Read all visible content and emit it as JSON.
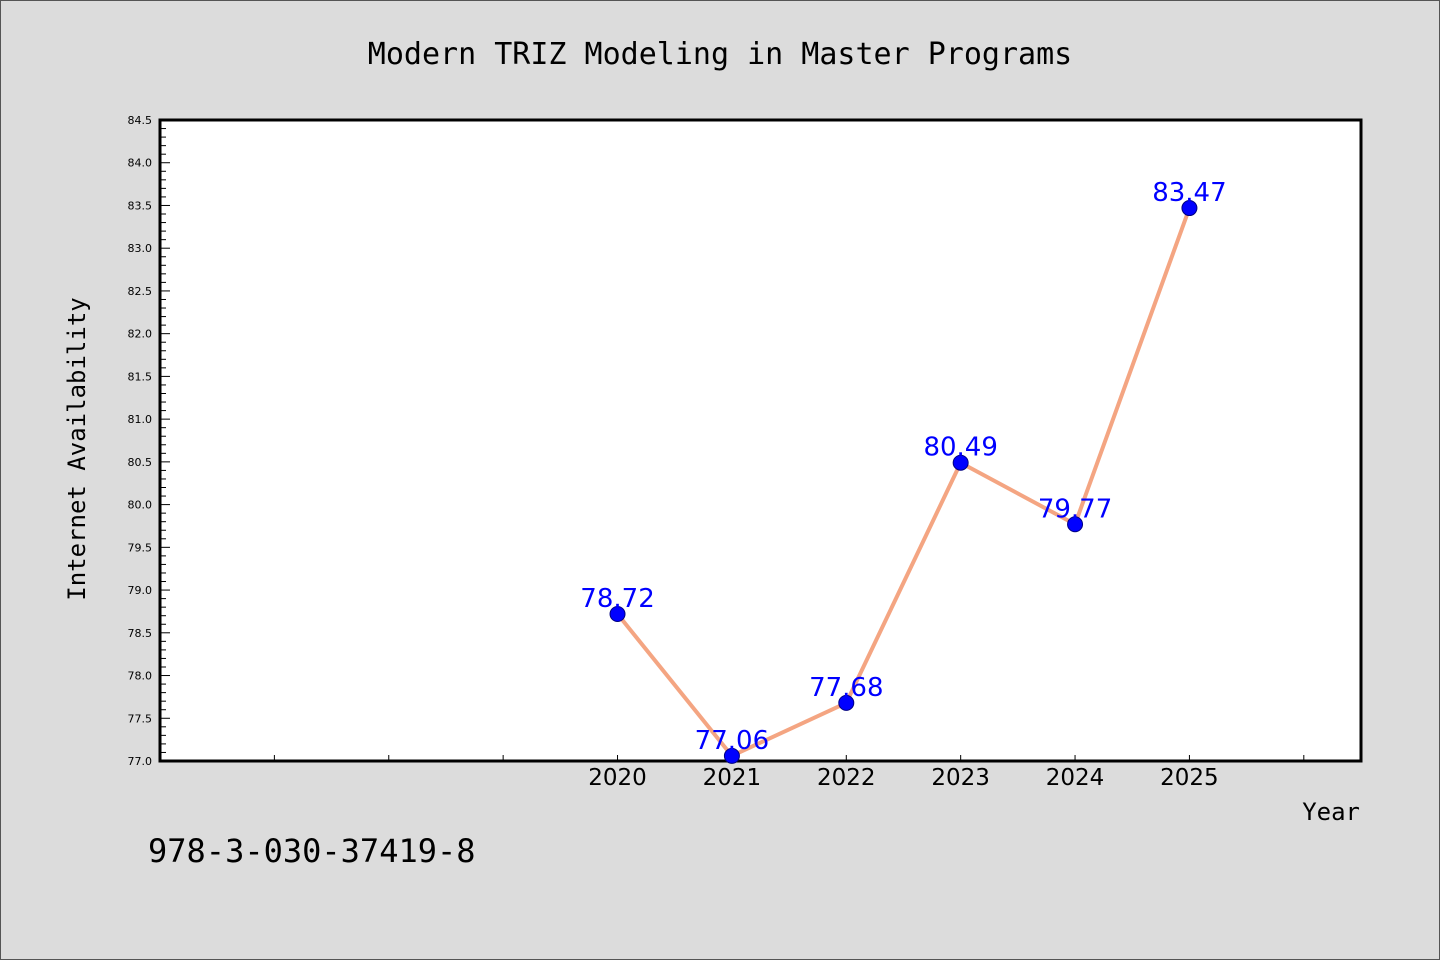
{
  "chart_data": {
    "type": "line",
    "title": "Modern TRIZ Modeling in Master Programs",
    "xlabel": "Year",
    "ylabel": "Internet Availability",
    "categories": [
      "2020",
      "2021",
      "2022",
      "2023",
      "2024",
      "2025"
    ],
    "x_positions": [
      2020,
      2021,
      2022,
      2023,
      2024,
      2025
    ],
    "xlim": [
      2016,
      2026.5
    ],
    "values": [
      78.72,
      77.06,
      77.68,
      80.49,
      79.77,
      83.47
    ],
    "data_labels": [
      "78.72",
      "77.06",
      "77.68",
      "80.49",
      "79.77",
      "83.47"
    ],
    "ylim": [
      77.0,
      84.5
    ],
    "yticks": [
      "77.0",
      "77.5",
      "78.0",
      "78.5",
      "79.0",
      "79.5",
      "80.0",
      "80.5",
      "81.0",
      "81.5",
      "82.0",
      "82.5",
      "83.0",
      "83.5",
      "84.0",
      "84.5"
    ],
    "grid": false,
    "colors": {
      "line": "#f4a582",
      "marker": "#0000ff",
      "labels": "#0000ff",
      "background": "#dcdcdc",
      "plot_background": "#ffffff"
    }
  },
  "footer": {
    "code": "978-3-030-37419-8"
  }
}
